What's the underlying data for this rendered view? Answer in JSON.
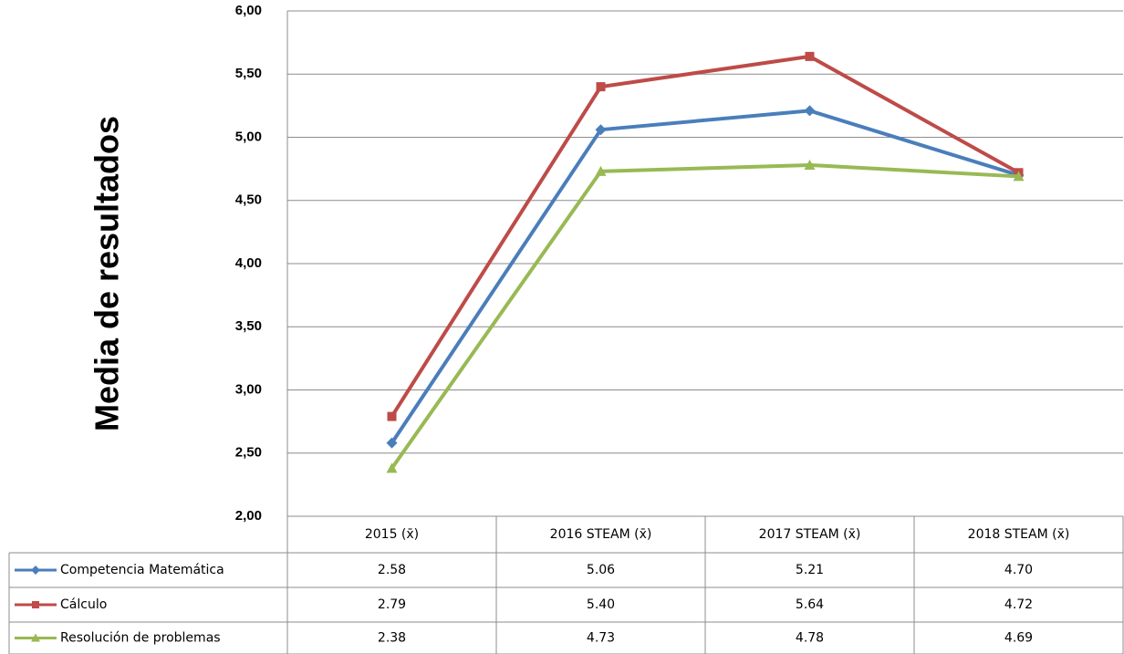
{
  "chart_data": {
    "type": "line",
    "y_label": "Media de resultados",
    "categories": [
      "2015 (x̄)",
      "2016 STEAM (x̄)",
      "2017 STEAM (x̄)",
      "2018 STEAM (x̄)"
    ],
    "series": [
      {
        "name": "Competencia Matemática",
        "color": "#4a7ebb",
        "marker": "diamond",
        "values": [
          2.58,
          5.06,
          5.21,
          4.7
        ],
        "value_labels": [
          "2.58",
          "5.06",
          "5.21",
          "4.70"
        ]
      },
      {
        "name": "Cálculo",
        "color": "#be4b48",
        "marker": "square",
        "values": [
          2.79,
          5.4,
          5.64,
          4.72
        ],
        "value_labels": [
          "2.79",
          "5.40",
          "5.64",
          "4.72"
        ]
      },
      {
        "name": "Resolución de problemas",
        "color": "#98b954",
        "marker": "triangle",
        "values": [
          2.38,
          4.73,
          4.78,
          4.69
        ],
        "value_labels": [
          "2.38",
          "4.73",
          "4.78",
          "4.69"
        ]
      }
    ],
    "ylim": [
      2,
      6
    ],
    "yticks": [
      {
        "value": 2,
        "label": "2,00"
      },
      {
        "value": 2.5,
        "label": "2,50"
      },
      {
        "value": 3,
        "label": "3,00"
      },
      {
        "value": 3.5,
        "label": "3,50"
      },
      {
        "value": 4,
        "label": "4,00"
      },
      {
        "value": 4.5,
        "label": "4,50"
      },
      {
        "value": 5,
        "label": "5,00"
      },
      {
        "value": 5.5,
        "label": "5,50"
      },
      {
        "value": 6,
        "label": "6,00"
      }
    ],
    "grid": true
  }
}
